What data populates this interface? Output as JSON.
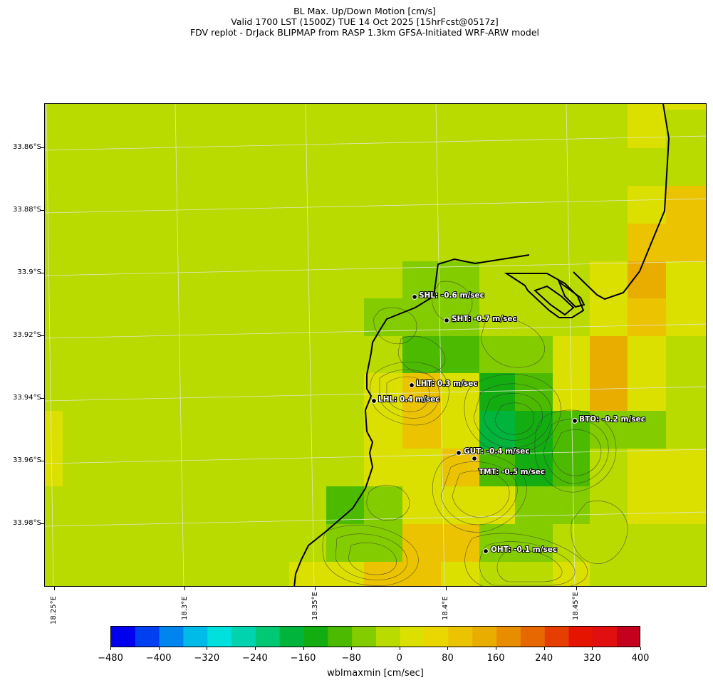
{
  "title": {
    "line1": "BL Max. Up/Down Motion [cm/s]",
    "line2": "Valid 1700 LST (1500Z) TUE 14 Oct 2025 [15hrFcst@0517z]",
    "line3": "FDV replot - DrJack BLIPMAP from RASP 1.3km GFSA-Initiated WRF-ARW model"
  },
  "map": {
    "lat_labels": [
      "33.86°S",
      "33.88°S",
      "33.9°S",
      "33.92°S",
      "33.94°S",
      "33.96°S",
      "33.98°S"
    ],
    "lon_labels": [
      "18.25°E",
      "18.3°E",
      "18.35°E",
      "18.4°E",
      "18.45°E"
    ],
    "background_color": "#b9db00",
    "stations": [
      {
        "code": "SHL",
        "label": "SHL: -0.6 m/sec",
        "value_m_per_sec": -0.6
      },
      {
        "code": "SHT",
        "label": "SHT: -0.7 m/sec",
        "value_m_per_sec": -0.7
      },
      {
        "code": "LHT",
        "label": "LHT: 0.3 m/sec",
        "value_m_per_sec": 0.3
      },
      {
        "code": "LHL",
        "label": "LHL: 0.4 m/sec",
        "value_m_per_sec": 0.4
      },
      {
        "code": "BTO",
        "label": "BTO: -0.2 m/sec",
        "value_m_per_sec": -0.2
      },
      {
        "code": "GUT",
        "label": "GUT: -0.4 m/sec",
        "value_m_per_sec": -0.4
      },
      {
        "code": "TMT",
        "label": "TMT: -0.5 m/sec",
        "value_m_per_sec": -0.5
      },
      {
        "code": "OHT",
        "label": "OHT: -0.1 m/sec",
        "value_m_per_sec": -0.1
      }
    ]
  },
  "colorbar": {
    "label": "wblmaxmin [cm/sec]",
    "tick_labels": [
      "−480",
      "−400",
      "−320",
      "−240",
      "−160",
      "−80",
      "0",
      "80",
      "160",
      "240",
      "320",
      "400"
    ],
    "range": [
      -480,
      400
    ],
    "colors": [
      "#0000ee",
      "#0040f0",
      "#0085ee",
      "#00bbe8",
      "#00e0dd",
      "#00d3ad",
      "#00c873",
      "#00b43c",
      "#13ad12",
      "#4cbb00",
      "#83cc00",
      "#b9db00",
      "#dbe000",
      "#ead600",
      "#ebc300",
      "#e9ad00",
      "#e88c00",
      "#e86800",
      "#e63d00",
      "#e41400",
      "#e10f0f",
      "#c4001e"
    ]
  }
}
